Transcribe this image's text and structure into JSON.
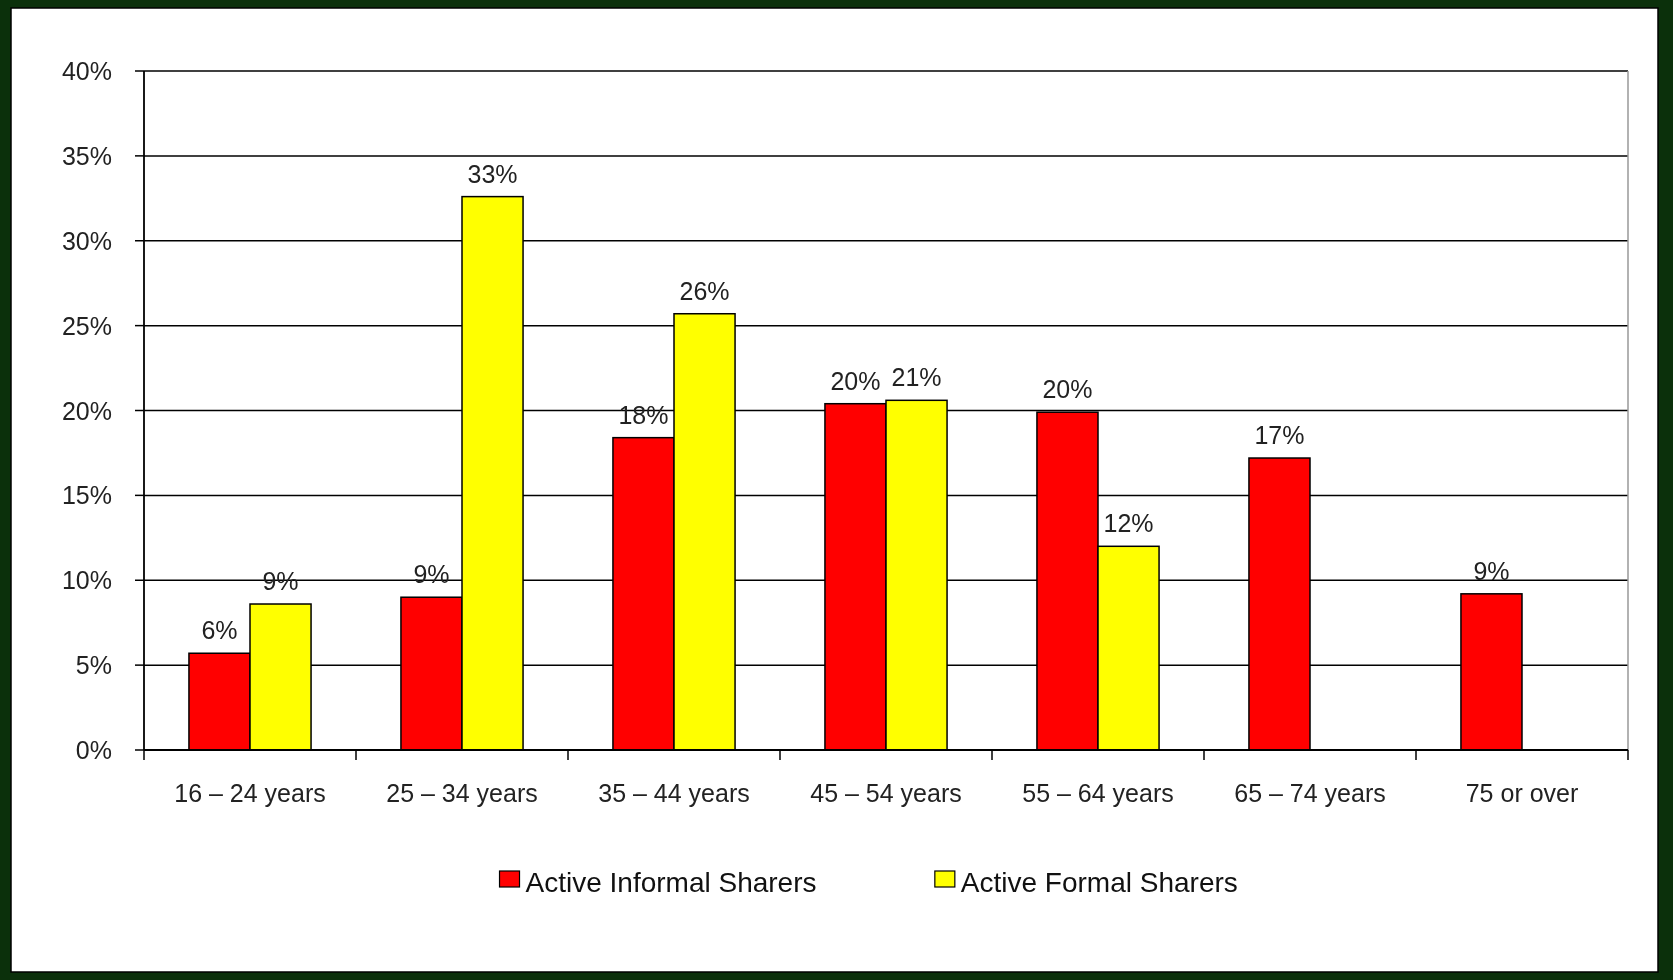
{
  "chart_data": {
    "type": "bar",
    "categories": [
      "16 – 24 years",
      "25 – 34 years",
      "35 – 44 years",
      "45 – 54 years",
      "55 – 64 years",
      "65 – 74 years",
      "75 or over"
    ],
    "series": [
      {
        "name": "Active Informal Sharers",
        "color": "#ff0000",
        "values": [
          5.7,
          9.0,
          18.4,
          20.4,
          19.9,
          17.2,
          9.2
        ],
        "value_labels": [
          "6%",
          "9%",
          "18%",
          "20%",
          "20%",
          "17%",
          "9%"
        ]
      },
      {
        "name": "Active Formal Sharers",
        "color": "#ffff00",
        "values": [
          8.6,
          32.6,
          25.7,
          20.6,
          12.0,
          null,
          null
        ],
        "value_labels": [
          "9%",
          "33%",
          "26%",
          "21%",
          "12%",
          null,
          null
        ]
      }
    ],
    "ylim": [
      0,
      40
    ],
    "yticks": [
      {
        "value": 0,
        "label": "0%"
      },
      {
        "value": 5,
        "label": "5%"
      },
      {
        "value": 10,
        "label": "10%"
      },
      {
        "value": 15,
        "label": "15%"
      },
      {
        "value": 20,
        "label": "20%"
      },
      {
        "value": 25,
        "label": "25%"
      },
      {
        "value": 30,
        "label": "30%"
      },
      {
        "value": 35,
        "label": "35%"
      },
      {
        "value": 40,
        "label": "40%"
      }
    ],
    "grid": "y",
    "legend": "bottom"
  }
}
